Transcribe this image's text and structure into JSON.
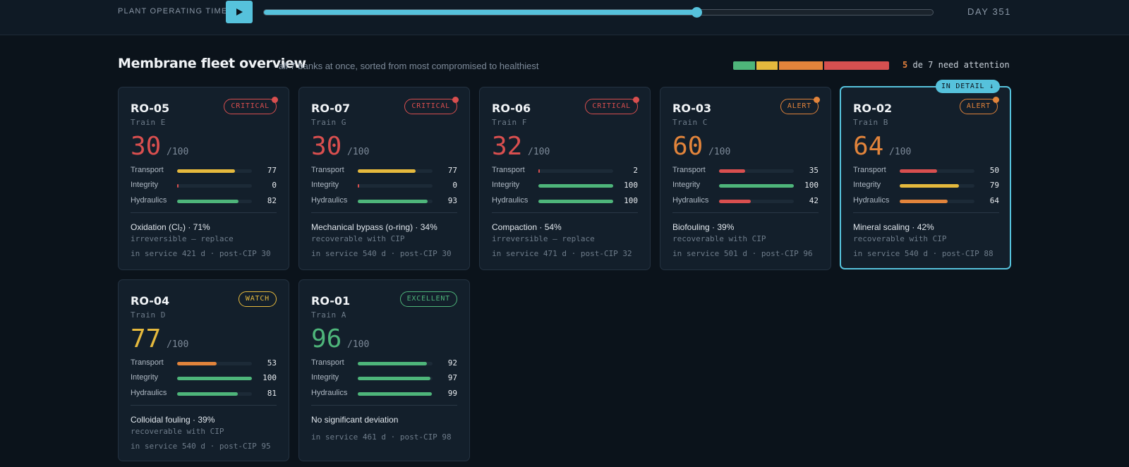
{
  "timeline": {
    "label": "PLANT OPERATING TIME",
    "day_label": "DAY 351",
    "progress": 0.647
  },
  "header": {
    "title": "Membrane fleet overview",
    "subtitle": "· all 7 banks at once, sorted from most compromised to healthiest",
    "attention_count": "5",
    "attention_text": "de 7 need attention",
    "health_segments": [
      {
        "color": "#4eb57a",
        "share": 1
      },
      {
        "color": "#e5b93d",
        "share": 1
      },
      {
        "color": "#e2843b",
        "share": 2
      },
      {
        "color": "#d65050",
        "share": 3
      }
    ]
  },
  "colors": {
    "critical": "#d94f4f",
    "alert": "#e2843b",
    "watch": "#e5b93d",
    "excellent": "#4eb57a",
    "accent": "#56c2dc"
  },
  "metric_labels": [
    "Transport",
    "Integrity",
    "Hydraulics"
  ],
  "score_max": "/100",
  "detail_tag": "IN DETAIL ↓",
  "cards": [
    {
      "id": "RO-05",
      "train": "Train E",
      "status": "CRITICAL",
      "level": "critical",
      "score": "30",
      "metrics": [
        {
          "value": 77,
          "color": "#e5b93d"
        },
        {
          "value": 0,
          "color": "#d94f4f"
        },
        {
          "value": 82,
          "color": "#4eb57a"
        }
      ],
      "diagnosis": "Oxidation (Cl₂) · 71%",
      "diagnosis_sub": "irreversible — replace",
      "service": "in service 421 d · post-CIP 30",
      "dot": true,
      "selected": false
    },
    {
      "id": "RO-07",
      "train": "Train G",
      "status": "CRITICAL",
      "level": "critical",
      "score": "30",
      "metrics": [
        {
          "value": 77,
          "color": "#e5b93d"
        },
        {
          "value": 0,
          "color": "#d94f4f"
        },
        {
          "value": 93,
          "color": "#4eb57a"
        }
      ],
      "diagnosis": "Mechanical bypass (o-ring) · 34%",
      "diagnosis_sub": "recoverable with CIP",
      "service": "in service 540 d · post-CIP 30",
      "dot": true,
      "selected": false
    },
    {
      "id": "RO-06",
      "train": "Train F",
      "status": "CRITICAL",
      "level": "critical",
      "score": "32",
      "metrics": [
        {
          "value": 2,
          "color": "#d94f4f"
        },
        {
          "value": 100,
          "color": "#4eb57a"
        },
        {
          "value": 100,
          "color": "#4eb57a"
        }
      ],
      "diagnosis": "Compaction · 54%",
      "diagnosis_sub": "irreversible — replace",
      "service": "in service 471 d · post-CIP 32",
      "dot": true,
      "selected": false
    },
    {
      "id": "RO-03",
      "train": "Train C",
      "status": "ALERT",
      "level": "alert",
      "score": "60",
      "metrics": [
        {
          "value": 35,
          "color": "#d94f4f"
        },
        {
          "value": 100,
          "color": "#4eb57a"
        },
        {
          "value": 42,
          "color": "#d94f4f"
        }
      ],
      "diagnosis": "Biofouling · 39%",
      "diagnosis_sub": "recoverable with CIP",
      "service": "in service 501 d · post-CIP 96",
      "dot": true,
      "selected": false
    },
    {
      "id": "RO-02",
      "train": "Train B",
      "status": "ALERT",
      "level": "alert",
      "score": "64",
      "metrics": [
        {
          "value": 50,
          "color": "#d94f4f"
        },
        {
          "value": 79,
          "color": "#e5b93d"
        },
        {
          "value": 64,
          "color": "#e2843b"
        }
      ],
      "diagnosis": "Mineral scaling · 42%",
      "diagnosis_sub": "recoverable with CIP",
      "service": "in service 540 d · post-CIP 88",
      "dot": true,
      "selected": true
    },
    {
      "id": "RO-04",
      "train": "Train D",
      "status": "WATCH",
      "level": "watch",
      "score": "77",
      "metrics": [
        {
          "value": 53,
          "color": "#e2843b"
        },
        {
          "value": 100,
          "color": "#4eb57a"
        },
        {
          "value": 81,
          "color": "#4eb57a"
        }
      ],
      "diagnosis": "Colloidal fouling · 39%",
      "diagnosis_sub": "recoverable with CIP",
      "service": "in service 540 d · post-CIP 95",
      "dot": false,
      "selected": false
    },
    {
      "id": "RO-01",
      "train": "Train A",
      "status": "EXCELLENT",
      "level": "excellent",
      "score": "96",
      "metrics": [
        {
          "value": 92,
          "color": "#4eb57a"
        },
        {
          "value": 97,
          "color": "#4eb57a"
        },
        {
          "value": 99,
          "color": "#4eb57a"
        }
      ],
      "diagnosis": "No significant deviation",
      "diagnosis_sub": "",
      "service": "in service 461 d · post-CIP 98",
      "dot": false,
      "selected": false
    }
  ]
}
